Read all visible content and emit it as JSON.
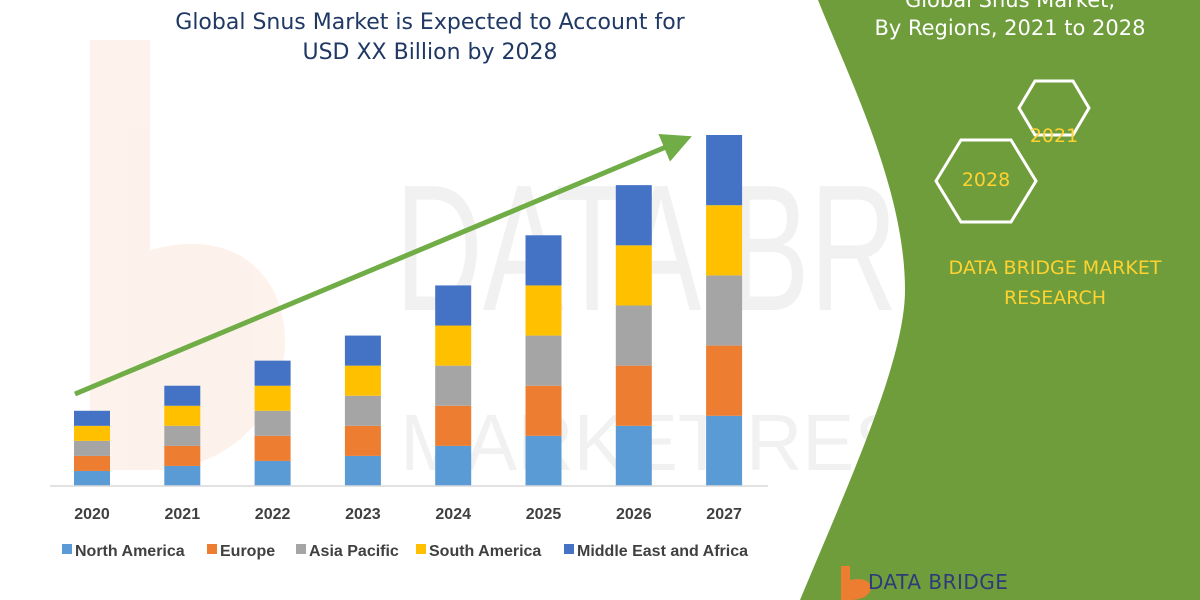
{
  "title_line1": "Global Snus Market is Expected to Account for",
  "title_line2": "USD XX Billion by 2028",
  "panel": {
    "title_line1": "Global Snus Market,",
    "title_line2": "By Regions, 2021 to 2028",
    "hex_2021": "2021",
    "hex_2028": "2028",
    "company_line1": "DATA BRIDGE MARKET",
    "company_line2": "RESEARCH",
    "logo_text": "DATA BRIDGE",
    "green": "#6f9d3c",
    "accent": "#ffd230"
  },
  "watermark_text": "DATA BRIDGE",
  "watermark_sub": "MARKET RESEARCH",
  "chart_data": {
    "type": "bar",
    "stacked": true,
    "categories": [
      "2020",
      "2021",
      "2022",
      "2023",
      "2024",
      "2025",
      "2026",
      "2027"
    ],
    "series": [
      {
        "name": "North America",
        "color": "#5b9bd5",
        "values": [
          1.5,
          2,
          2.5,
          3,
          4,
          5,
          6,
          7
        ]
      },
      {
        "name": "Europe",
        "color": "#ed7d31",
        "values": [
          1.5,
          2,
          2.5,
          3,
          4,
          5,
          6,
          7
        ]
      },
      {
        "name": "Asia Pacific",
        "color": "#a5a5a5",
        "values": [
          1.5,
          2,
          2.5,
          3,
          4,
          5,
          6,
          7
        ]
      },
      {
        "name": "South America",
        "color": "#ffc000",
        "values": [
          1.5,
          2,
          2.5,
          3,
          4,
          5,
          6,
          7
        ]
      },
      {
        "name": "Middle East and Africa",
        "color": "#4472c4",
        "values": [
          1.5,
          2,
          2.5,
          3,
          4,
          5,
          6,
          7
        ]
      }
    ],
    "ylim": [
      0,
      35
    ],
    "grid": false,
    "legend": "bottom",
    "trend_arrow": {
      "color": "#70ad47",
      "direction": "up"
    }
  }
}
